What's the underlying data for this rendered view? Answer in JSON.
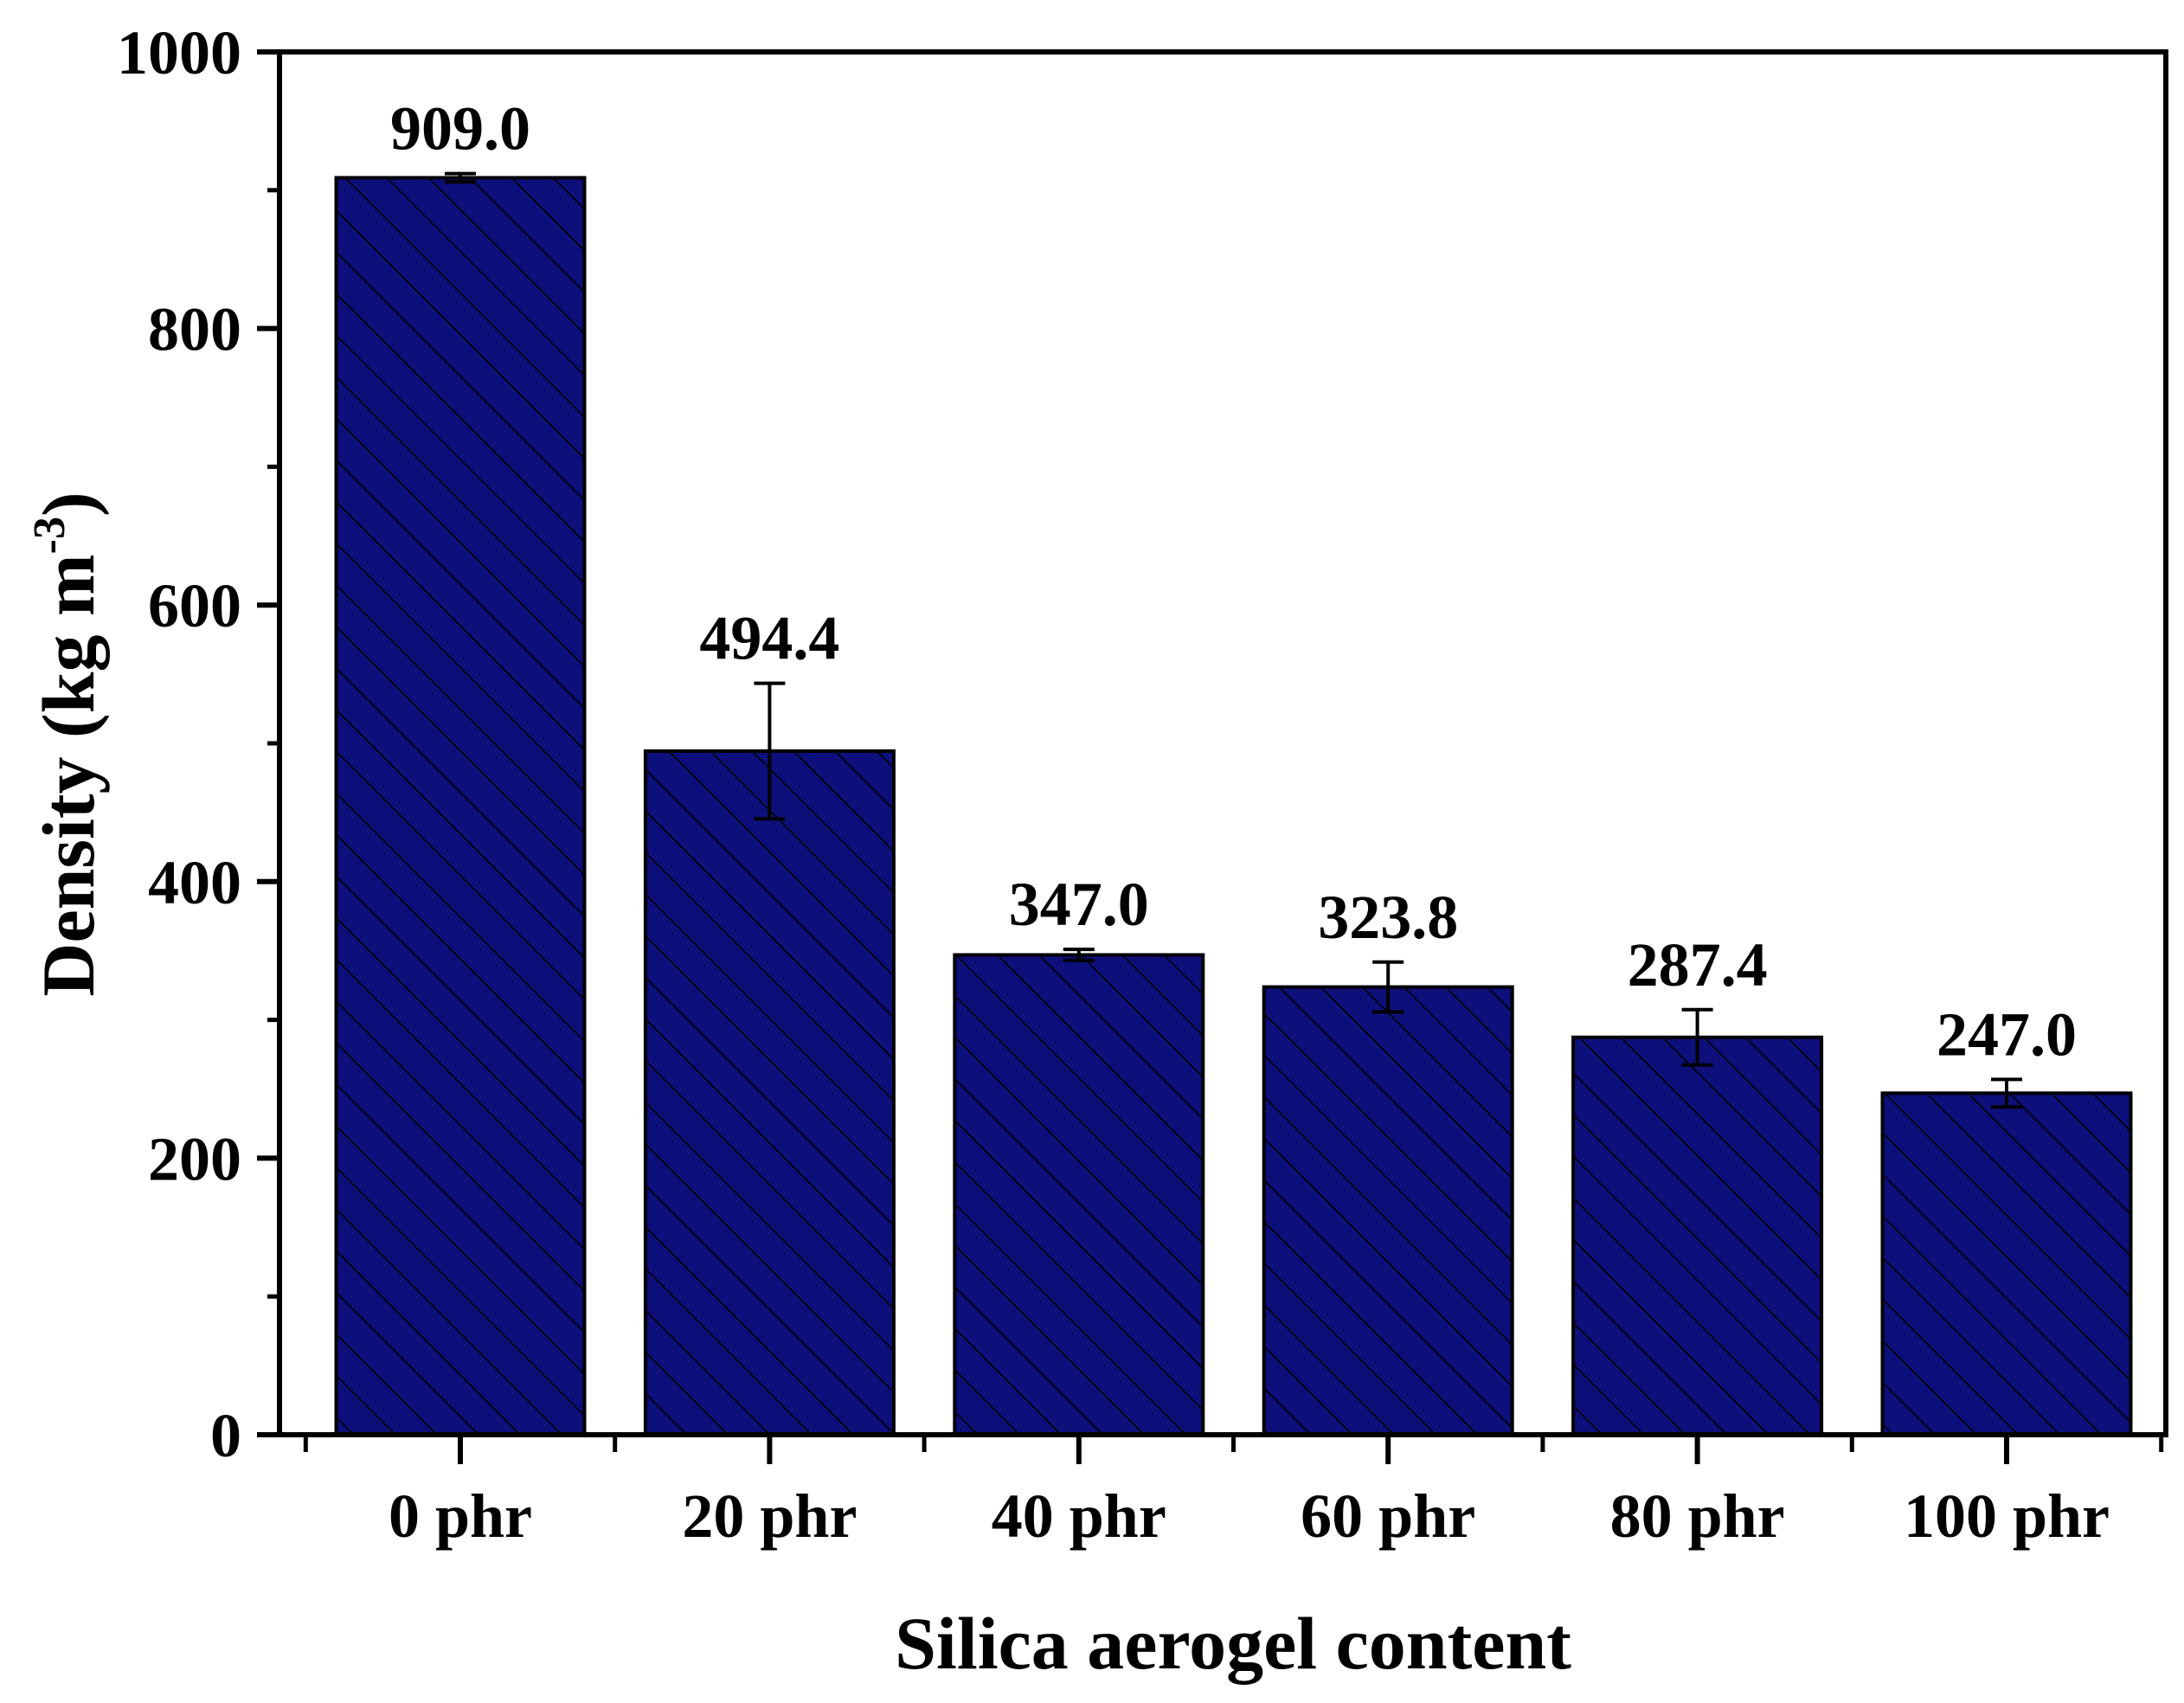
{
  "chart_data": {
    "type": "bar",
    "xlabel": "Silica aerogel content",
    "ylabel": "Density (kg m",
    "ylabel_sup": "-3",
    "ylabel_close": ")",
    "categories": [
      "0 phr",
      "20 phr",
      "40 phr",
      "60 phr",
      "80 phr",
      "100 phr"
    ],
    "values": [
      909.0,
      494.4,
      347.0,
      323.8,
      287.4,
      247.0
    ],
    "value_labels": [
      "909.0",
      "494.4",
      "347.0",
      "323.8",
      "287.4",
      "247.0"
    ],
    "errors": [
      3,
      49,
      4,
      18,
      20,
      10
    ],
    "ylim": [
      0,
      1000
    ],
    "yticks": [
      0,
      200,
      400,
      600,
      800,
      1000
    ],
    "ytick_labels": [
      "0",
      "200",
      "400",
      "600",
      "800",
      "1000"
    ],
    "bar_color": "#0d0f7a",
    "hatch_color": "#000000",
    "grid": false,
    "legend": "none"
  }
}
